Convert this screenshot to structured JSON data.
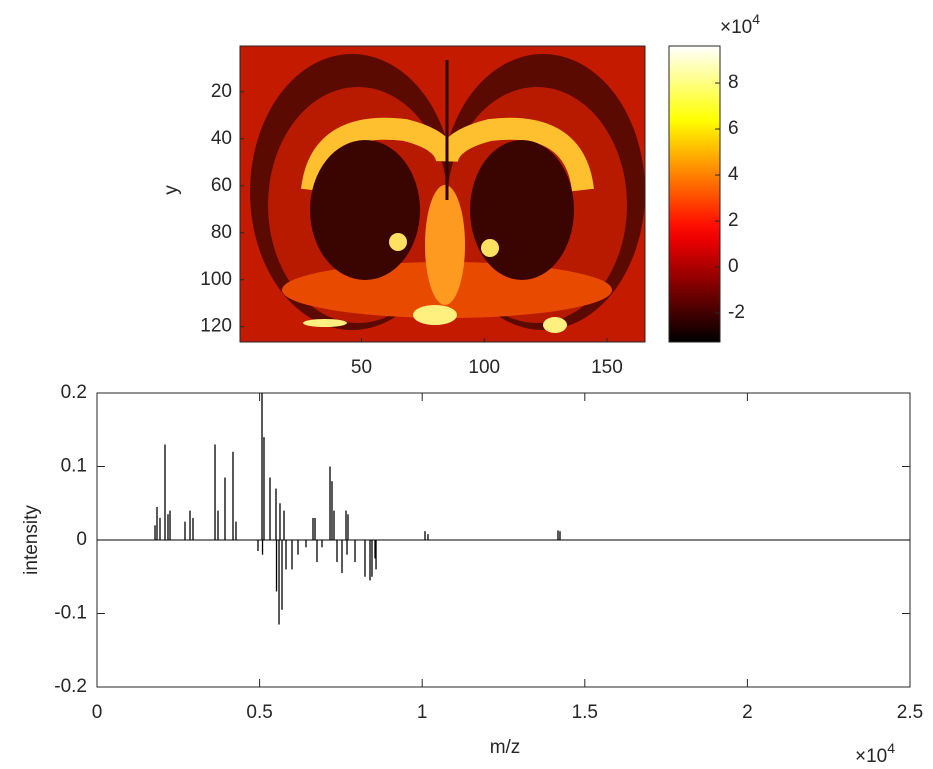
{
  "chart_data": [
    {
      "type": "image",
      "ylabel": "y",
      "colormap": "hot",
      "xlim": [
        0.5,
        165.5
      ],
      "ylim": [
        0.5,
        126.5
      ],
      "y_reversed": true,
      "xticks": [
        50,
        100,
        150
      ],
      "yticks": [
        20,
        40,
        60,
        80,
        100,
        120
      ],
      "clim": [
        -32600,
        96100
      ],
      "cticks": [
        {
          "value": -20000,
          "label": "-2"
        },
        {
          "value": 0,
          "label": "0"
        },
        {
          "value": 20000,
          "label": "2"
        },
        {
          "value": 40000,
          "label": "4"
        },
        {
          "value": 60000,
          "label": "6"
        },
        {
          "value": 80000,
          "label": "8"
        }
      ],
      "c_exponent": {
        "base": "×10",
        "power": "4"
      }
    },
    {
      "type": "stem",
      "xlabel": "m/z",
      "ylabel": "intensity",
      "color": "#000000",
      "xlim": [
        0,
        25000
      ],
      "ylim": [
        -0.2,
        0.2
      ],
      "xticks": [
        0,
        {
          "value": 5000,
          "label": "0.5"
        },
        {
          "value": 10000,
          "label": "1"
        },
        {
          "value": 15000,
          "label": "1.5"
        },
        {
          "value": 20000,
          "label": "2"
        },
        {
          "value": 25000,
          "label": "2.5"
        }
      ],
      "yticks": [
        -0.2,
        -0.1,
        0,
        0.1,
        0.2
      ],
      "x_exponent": {
        "base": "×10",
        "power": "4"
      },
      "x": [
        1784,
        1845,
        1937,
        2091,
        2183,
        2245,
        2706,
        2860,
        2952,
        3629,
        3721,
        3936,
        4182,
        4274,
        4951,
        5074,
        5090,
        5135,
        5320,
        5504,
        5520,
        5597,
        5627,
        5689,
        5750,
        5812,
        5996,
        6181,
        6427,
        6642,
        6704,
        6765,
        6919,
        7165,
        7226,
        7288,
        7380,
        7534,
        7657,
        7688,
        7718,
        7934,
        8241,
        8395,
        8456,
        8549,
        8580,
        10086,
        10178,
        14176,
        14237
      ],
      "values": [
        0.02,
        0.045,
        0.03,
        0.13,
        0.035,
        0.04,
        0.025,
        0.04,
        0.03,
        0.13,
        0.04,
        0.085,
        0.12,
        0.025,
        -0.015,
        0.2,
        -0.02,
        0.14,
        0.085,
        0.07,
        -0.07,
        -0.115,
        0.05,
        -0.095,
        0.04,
        -0.04,
        -0.04,
        -0.02,
        -0.01,
        0.03,
        0.03,
        -0.03,
        -0.01,
        0.1,
        0.08,
        0.04,
        -0.03,
        -0.045,
        0.04,
        -0.02,
        0.035,
        -0.03,
        -0.05,
        -0.055,
        -0.05,
        -0.025,
        -0.04,
        0.012,
        0.008,
        0.013,
        0.012
      ]
    }
  ]
}
